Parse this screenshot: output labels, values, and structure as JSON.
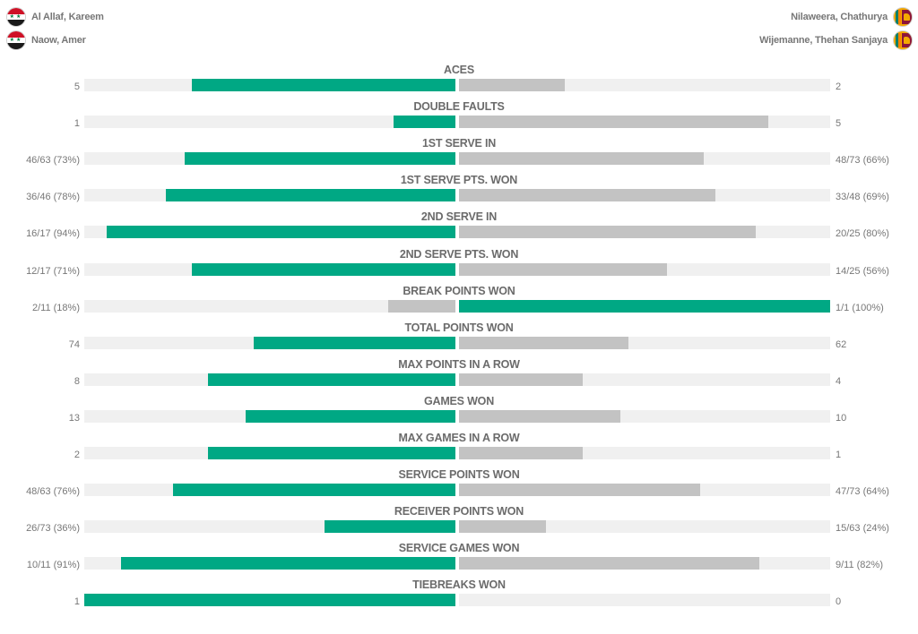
{
  "players": {
    "left": [
      {
        "name": "Al Allaf, Kareem",
        "flag": "syria-flag-icon"
      },
      {
        "name": "Naow, Amer",
        "flag": "syria-flag-icon"
      }
    ],
    "right": [
      {
        "name": "Nilaweera, Chathurya",
        "flag": "sri-lanka-flag-icon"
      },
      {
        "name": "Wijemanne, Thehan Sanjaya",
        "flag": "sri-lanka-flag-icon"
      }
    ]
  },
  "colors": {
    "leader": "#00a884",
    "trailer": "#c3c3c3",
    "track": "#f0f0f0"
  },
  "stats": [
    {
      "label": "ACES",
      "left": "5",
      "right": "2",
      "left_fill": 0.71,
      "right_fill": 0.285,
      "leader": "left"
    },
    {
      "label": "DOUBLE FAULTS",
      "left": "1",
      "right": "5",
      "left_fill": 0.167,
      "right_fill": 0.833,
      "leader": "left"
    },
    {
      "label": "1ST SERVE IN",
      "left": "46/63 (73%)",
      "right": "48/73 (66%)",
      "left_fill": 0.73,
      "right_fill": 0.66,
      "leader": "left"
    },
    {
      "label": "1ST SERVE PTS. WON",
      "left": "36/46 (78%)",
      "right": "33/48 (69%)",
      "left_fill": 0.78,
      "right_fill": 0.69,
      "leader": "left"
    },
    {
      "label": "2ND SERVE IN",
      "left": "16/17 (94%)",
      "right": "20/25 (80%)",
      "left_fill": 0.94,
      "right_fill": 0.8,
      "leader": "left"
    },
    {
      "label": "2ND SERVE PTS. WON",
      "left": "12/17 (71%)",
      "right": "14/25 (56%)",
      "left_fill": 0.71,
      "right_fill": 0.56,
      "leader": "left"
    },
    {
      "label": "BREAK POINTS WON",
      "left": "2/11 (18%)",
      "right": "1/1 (100%)",
      "left_fill": 0.18,
      "right_fill": 1.0,
      "leader": "right"
    },
    {
      "label": "TOTAL POINTS WON",
      "left": "74",
      "right": "62",
      "left_fill": 0.544,
      "right_fill": 0.456,
      "leader": "left"
    },
    {
      "label": "MAX POINTS IN A ROW",
      "left": "8",
      "right": "4",
      "left_fill": 0.667,
      "right_fill": 0.333,
      "leader": "left"
    },
    {
      "label": "GAMES WON",
      "left": "13",
      "right": "10",
      "left_fill": 0.565,
      "right_fill": 0.435,
      "leader": "left"
    },
    {
      "label": "MAX GAMES IN A ROW",
      "left": "2",
      "right": "1",
      "left_fill": 0.667,
      "right_fill": 0.333,
      "leader": "left"
    },
    {
      "label": "SERVICE POINTS WON",
      "left": "48/63 (76%)",
      "right": "47/73 (64%)",
      "left_fill": 0.76,
      "right_fill": 0.65,
      "leader": "left"
    },
    {
      "label": "RECEIVER POINTS WON",
      "left": "26/73 (36%)",
      "right": "15/63 (24%)",
      "left_fill": 0.353,
      "right_fill": 0.235,
      "leader": "left"
    },
    {
      "label": "SERVICE GAMES WON",
      "left": "10/11 (91%)",
      "right": "9/11 (82%)",
      "left_fill": 0.9,
      "right_fill": 0.81,
      "leader": "left"
    },
    {
      "label": "TIEBREAKS WON",
      "left": "1",
      "right": "0",
      "left_fill": 1.0,
      "right_fill": 0.0,
      "leader": "left"
    }
  ]
}
